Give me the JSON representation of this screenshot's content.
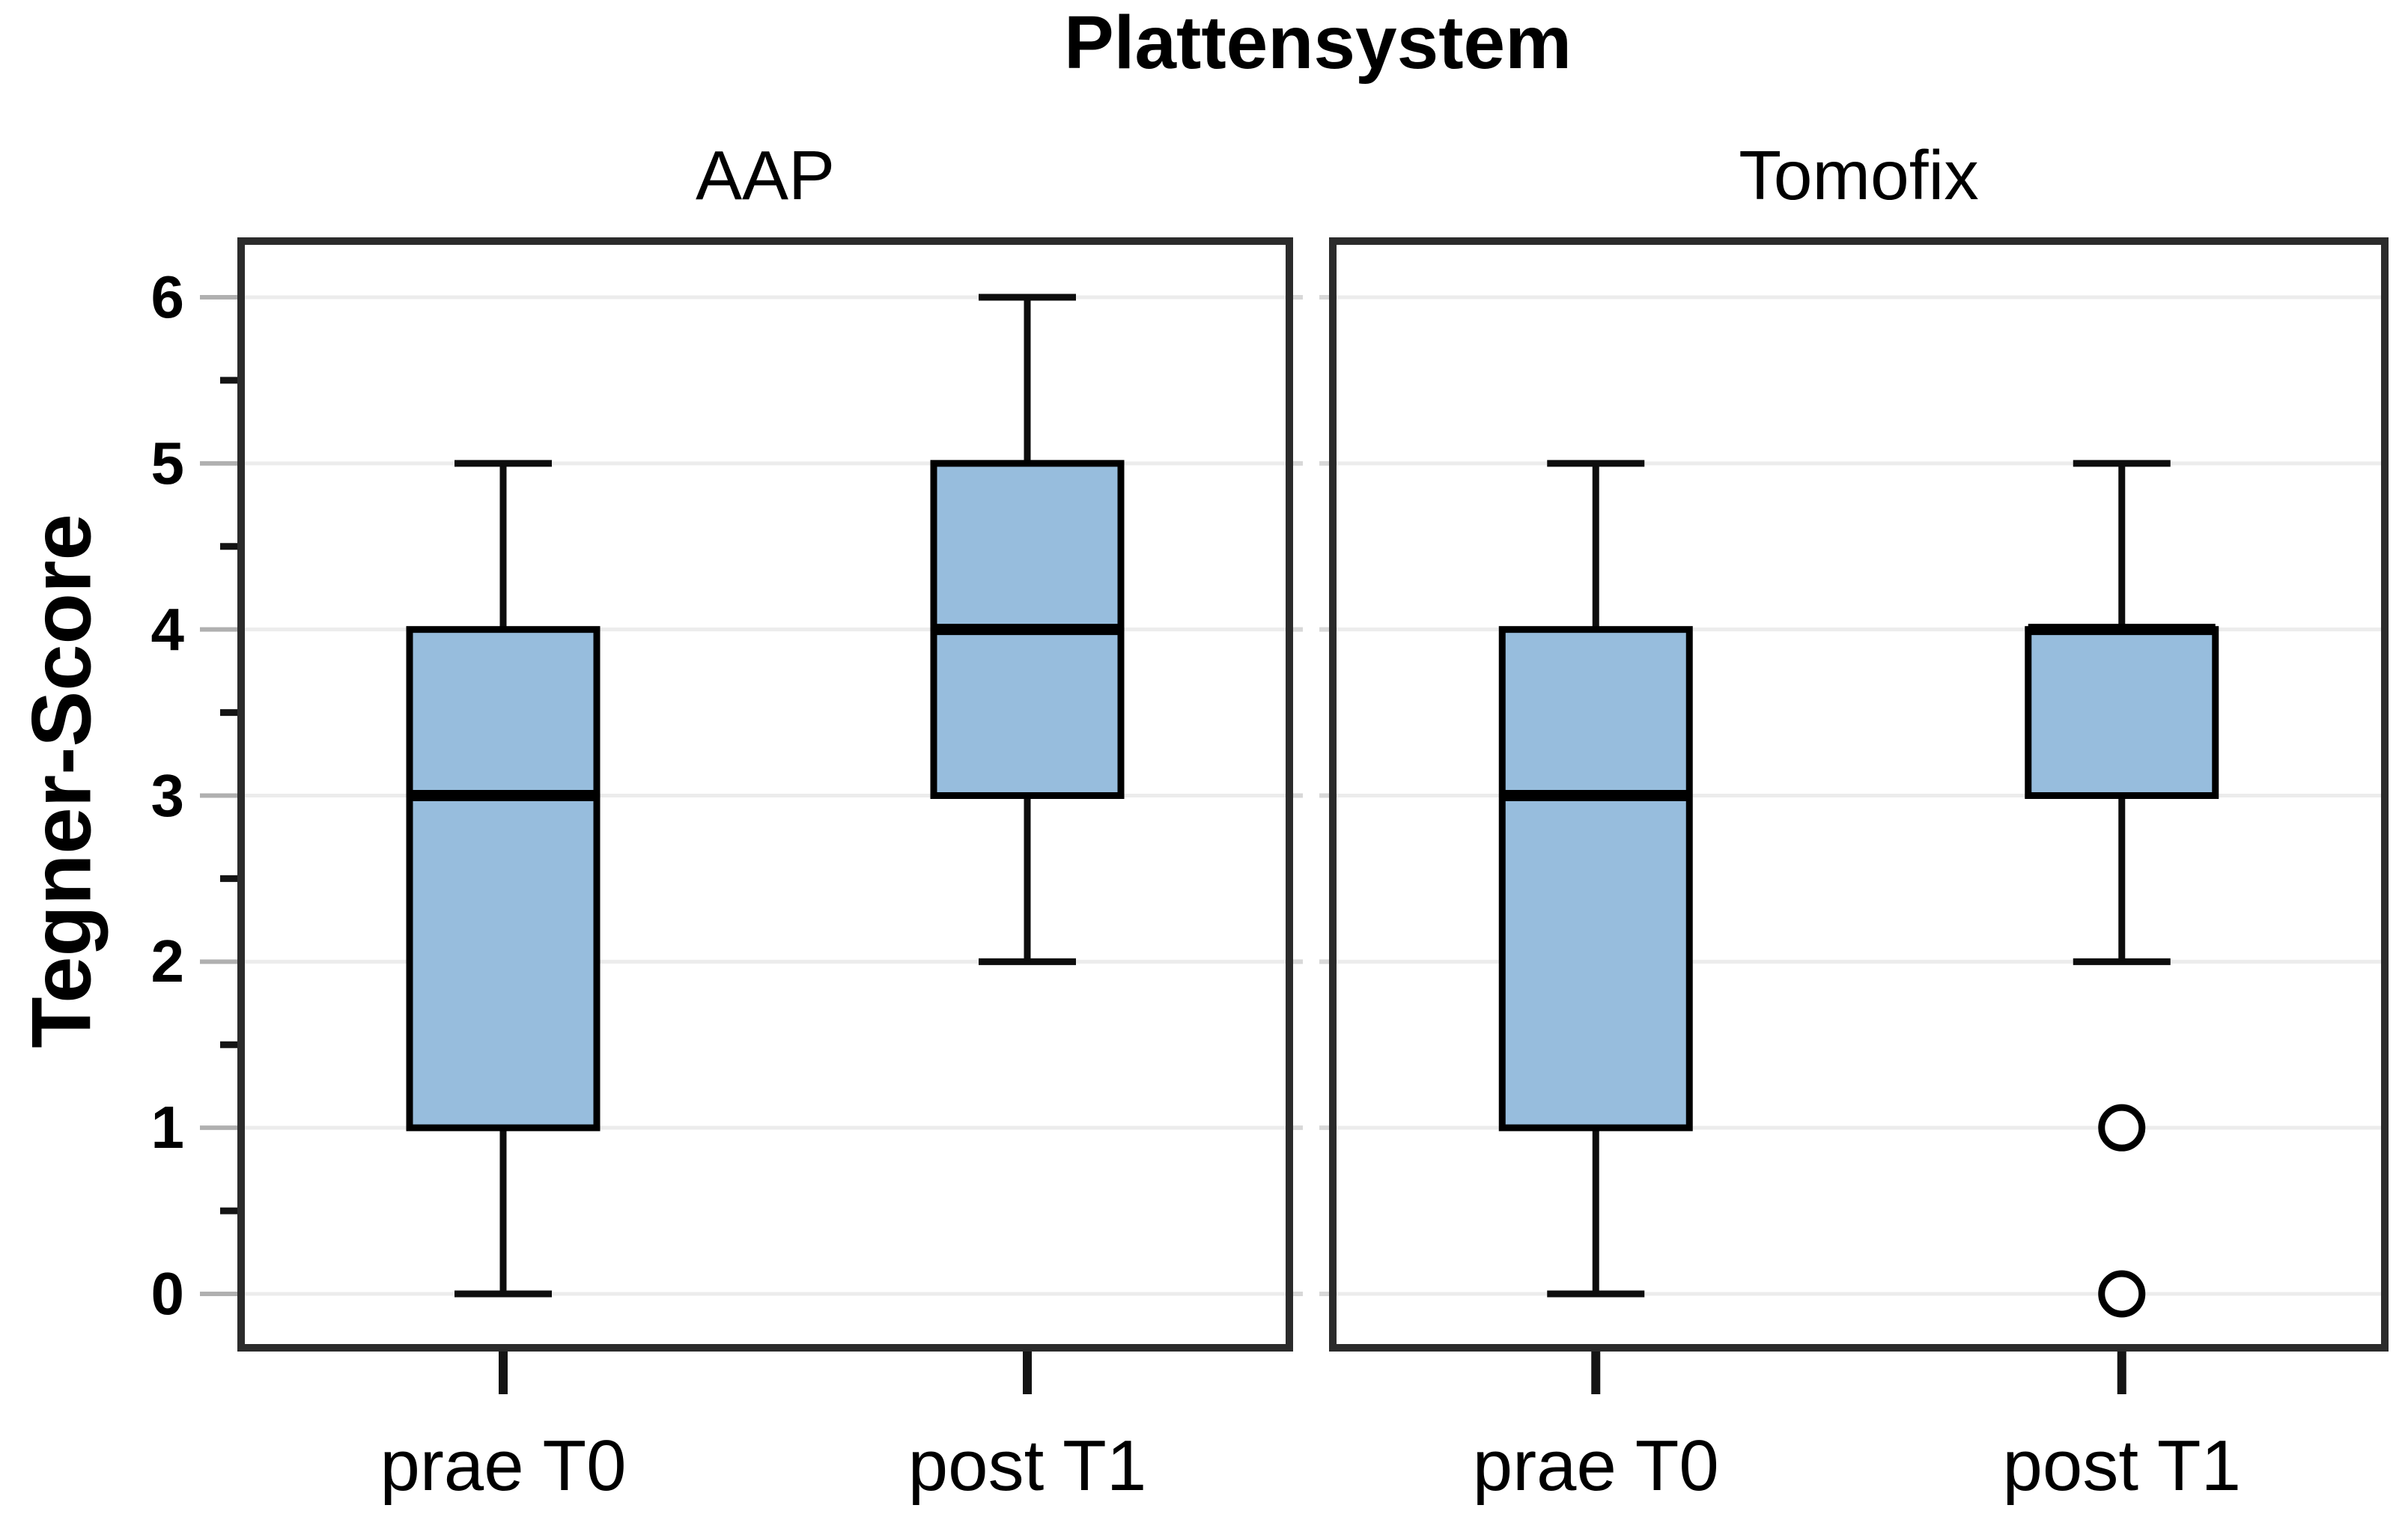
{
  "chart_data": {
    "type": "boxplot",
    "title": "Plattensystem",
    "ylabel": "Tegner-Score",
    "xlabel": "",
    "ylim": [
      -0.33,
      6.34
    ],
    "yticks": [
      0,
      1,
      2,
      3,
      4,
      5,
      6
    ],
    "yticks_minor": [
      0.5,
      1.5,
      2.5,
      3.5,
      4.5,
      5.5
    ],
    "grid": "horizontal gridlines at integer ticks",
    "legend_position": "none",
    "panels": [
      {
        "label": "AAP",
        "categories": [
          "prae T0",
          "post T1"
        ],
        "boxes": [
          {
            "category": "prae T0",
            "whisker_low": 0,
            "q1": 1,
            "median": 3,
            "q3": 4,
            "whisker_high": 5,
            "outliers": []
          },
          {
            "category": "post T1",
            "whisker_low": 2,
            "q1": 3,
            "median": 4,
            "q3": 5,
            "whisker_high": 6,
            "outliers": []
          }
        ]
      },
      {
        "label": "Tomofix",
        "categories": [
          "prae T0",
          "post T1"
        ],
        "boxes": [
          {
            "category": "prae T0",
            "whisker_low": 0,
            "q1": 1,
            "median": 3,
            "q3": 4,
            "whisker_high": 5,
            "outliers": []
          },
          {
            "category": "post T1",
            "whisker_low": 2,
            "q1": 3,
            "median": 4,
            "q3": 4,
            "whisker_high": 5,
            "outliers": [
              1,
              0
            ]
          }
        ]
      }
    ],
    "colors": {
      "box_fill": "#97BDDD",
      "box_border": "#000000",
      "median": "#000000",
      "whisker": "#0d0d0d",
      "frame": "#2b2b2b",
      "gridline": "#ececec",
      "gap_tick": "#d8d8d8",
      "tick_major": "#b0b0b0",
      "tick_minor": "#141414",
      "outlier_stroke": "#000000",
      "outlier_fill": "#ffffff",
      "text": "#000000",
      "background": "#ffffff"
    }
  }
}
